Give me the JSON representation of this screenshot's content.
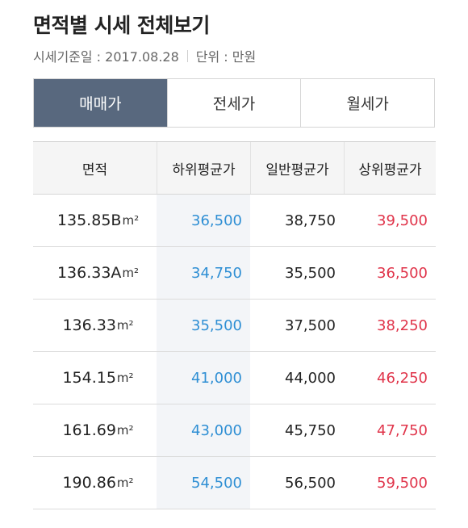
{
  "page": {
    "title": "면적별 시세 전체보기",
    "base_date": "시세기준일 : 2017.08.28",
    "unit": "단위 : 만원"
  },
  "tabs": [
    {
      "label": "매매가",
      "active": true
    },
    {
      "label": "전세가",
      "active": false
    },
    {
      "label": "월세가",
      "active": false
    }
  ],
  "table": {
    "headers": {
      "area": "면적",
      "low": "하위평균가",
      "mid": "일반평균가",
      "high": "상위평균가"
    },
    "unit_label": "m²",
    "rows": [
      {
        "area": "135.85B",
        "low": "36,500",
        "mid": "38,750",
        "high": "39,500"
      },
      {
        "area": "136.33A",
        "low": "34,750",
        "mid": "35,500",
        "high": "36,500"
      },
      {
        "area": "136.33",
        "low": "35,500",
        "mid": "37,500",
        "high": "38,250"
      },
      {
        "area": "154.15",
        "low": "41,000",
        "mid": "44,000",
        "high": "46,250"
      },
      {
        "area": "161.69",
        "low": "43,000",
        "mid": "45,750",
        "high": "47,750"
      },
      {
        "area": "190.86",
        "low": "54,500",
        "mid": "56,500",
        "high": "59,500"
      }
    ]
  },
  "colors": {
    "active_tab": "#58687e",
    "low_value": "#2f8fd4",
    "high_value": "#e0344a"
  }
}
